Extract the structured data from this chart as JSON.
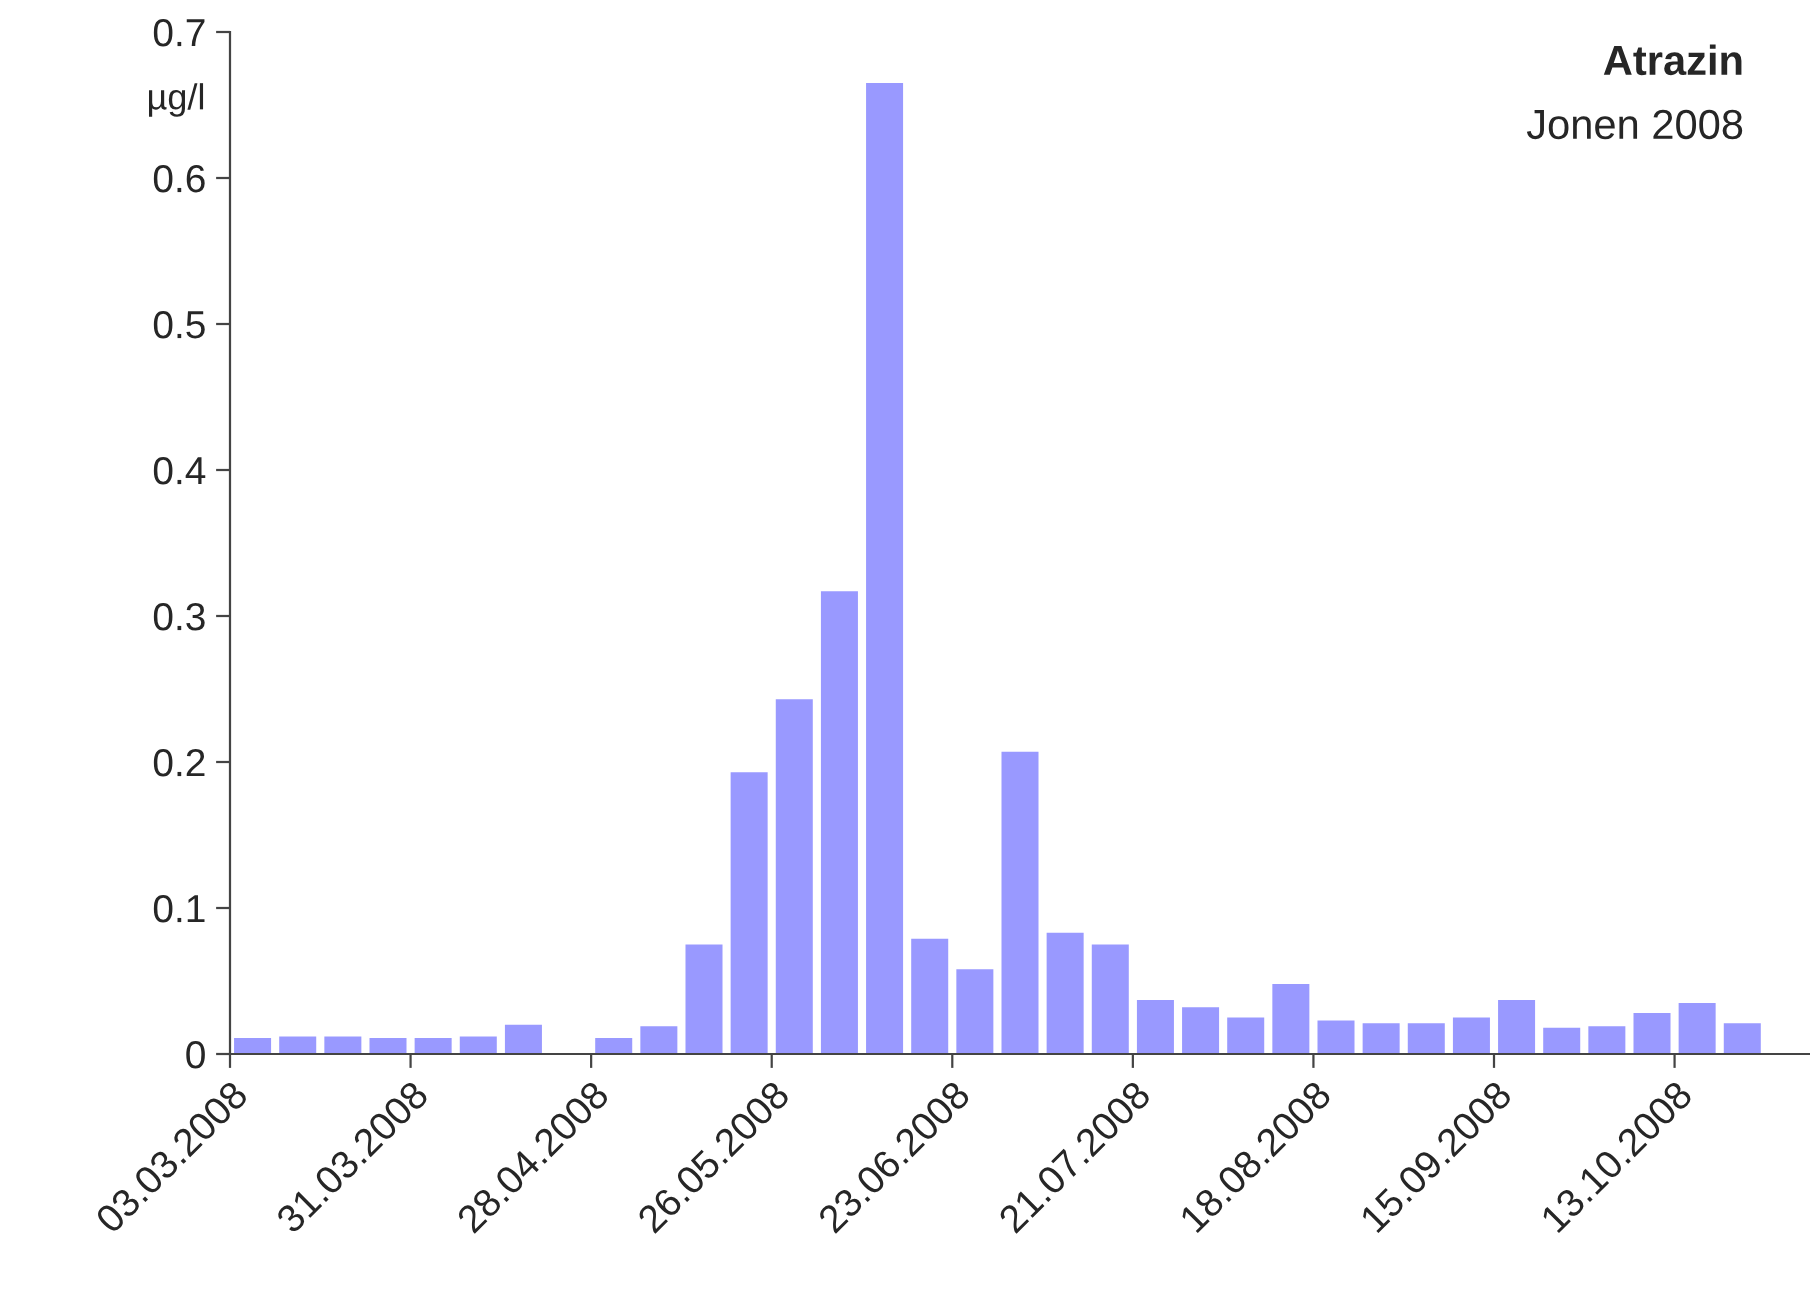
{
  "chart_data": {
    "type": "bar",
    "title": "Atrazin",
    "subtitle": "Jonen 2008",
    "ylabel": "µg/l",
    "x": [
      "2008-03-06T12:00",
      "2008-03-13T12:00",
      "2008-03-20T12:00",
      "2008-03-27T12:00",
      "2008-04-03T12:00",
      "2008-04-10T12:00",
      "2008-04-17T12:00",
      "2008-04-24T12:00",
      "2008-05-01T12:00",
      "2008-05-08T12:00",
      "2008-05-15T12:00",
      "2008-05-22T12:00",
      "2008-05-29T12:00",
      "2008-06-05T12:00",
      "2008-06-12T12:00",
      "2008-06-19T12:00",
      "2008-06-26T12:00",
      "2008-07-03T12:00",
      "2008-07-10T12:00",
      "2008-07-17T12:00",
      "2008-07-24T12:00",
      "2008-07-31T12:00",
      "2008-08-07T12:00",
      "2008-08-14T12:00",
      "2008-08-21T12:00",
      "2008-08-28T12:00",
      "2008-09-04T12:00",
      "2008-09-11T12:00",
      "2008-09-18T12:00",
      "2008-09-25T12:00",
      "2008-10-02T12:00",
      "2008-10-09T12:00",
      "2008-10-16T12:00",
      "2008-10-23T12:00"
    ],
    "values": [
      0.011,
      0.012,
      0.012,
      0.011,
      0.011,
      0.012,
      0.02,
      null,
      0.011,
      0.019,
      0.075,
      0.193,
      0.243,
      0.317,
      0.665,
      0.079,
      0.058,
      0.207,
      0.083,
      0.075,
      0.037,
      0.032,
      0.025,
      0.048,
      0.023,
      0.021,
      0.021,
      0.025,
      0.037,
      0.018,
      0.019,
      0.028,
      0.035,
      0.021
    ],
    "color": "#9999ff",
    "xlim": [
      "2008-03-03",
      "2008-11-03"
    ],
    "xticks": [
      {
        "value": "2008-03-03",
        "label": "03.03.2008"
      },
      {
        "value": "2008-03-31",
        "label": "31.03.2008"
      },
      {
        "value": "2008-04-28",
        "label": "28.04.2008"
      },
      {
        "value": "2008-05-26",
        "label": "26.05.2008"
      },
      {
        "value": "2008-06-23",
        "label": "23.06.2008"
      },
      {
        "value": "2008-07-21",
        "label": "21.07.2008"
      },
      {
        "value": "2008-08-18",
        "label": "18.08.2008"
      },
      {
        "value": "2008-09-15",
        "label": "15.09.2008"
      },
      {
        "value": "2008-10-13",
        "label": "13.10.2008"
      }
    ],
    "ylim": [
      0,
      0.7
    ],
    "yticks": [
      0,
      0.1,
      0.2,
      0.3,
      0.4,
      0.5,
      0.6,
      0.7
    ],
    "grid": false,
    "legend": false
  }
}
